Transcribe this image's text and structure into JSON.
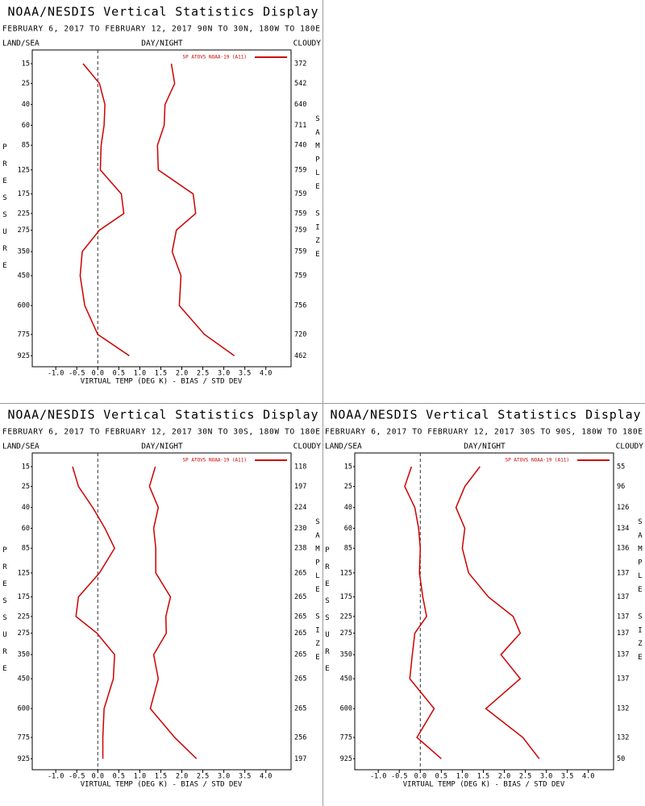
{
  "chart_data": [
    {
      "type": "line",
      "title": "NOAA/NESDIS Vertical Statistics Display",
      "subtitle": "FEBRUARY 6, 2017 TO FEBRUARY 12, 2017 90N TO 30N, 180W TO 180E",
      "left_header": "LAND/SEA",
      "center_header": "DAY/NIGHT",
      "right_header": "CLOUDY",
      "ylabel": "PRESSURE",
      "y2label": "SAMPLE SIZE",
      "xlabel": "VIRTUAL TEMP (DEG K) - BIAS / STD DEV",
      "legend": "SP ATOVS NOAA-19 (A11)",
      "legend_color": "#cc0000",
      "y": [
        15,
        25,
        40,
        60,
        85,
        125,
        175,
        225,
        275,
        350,
        450,
        600,
        775,
        925
      ],
      "yticks": [
        15,
        25,
        40,
        60,
        85,
        125,
        175,
        225,
        275,
        350,
        450,
        600,
        775,
        925
      ],
      "ylim": [
        10,
        1010
      ],
      "y_scale": "power",
      "y_exponent": 0.3,
      "y_inverted": true,
      "sample_size": [
        372,
        542,
        640,
        711,
        740,
        759,
        759,
        759,
        759,
        759,
        759,
        756,
        720,
        462
      ],
      "xlim": [
        -1.56,
        4.6
      ],
      "xticks": [
        {
          "value": -1,
          "label": "-1.0"
        },
        -0.5,
        {
          "value": 0,
          "label": "0.0"
        },
        0.5,
        {
          "value": 1,
          "label": "1.0"
        },
        1.5,
        {
          "value": 2,
          "label": "2.0"
        },
        2.5,
        {
          "value": 3,
          "label": "3.0"
        },
        3.5,
        {
          "value": 4,
          "label": "4.0"
        }
      ],
      "zero_line": true,
      "series": [
        {
          "color": "#cc0000",
          "values": [
            -0.35,
            0.04,
            0.17,
            0.15,
            0.08,
            0.06,
            0.56,
            0.62,
            0.04,
            -0.37,
            -0.42,
            -0.31,
            0.0,
            0.75
          ]
        },
        {
          "color": "#cc0000",
          "values": [
            1.75,
            1.83,
            1.6,
            1.58,
            1.42,
            1.44,
            2.27,
            2.33,
            1.87,
            1.77,
            1.98,
            1.94,
            2.54,
            3.25
          ]
        }
      ]
    },
    {
      "type": "line",
      "title": "NOAA/NESDIS Vertical Statistics Display",
      "subtitle": "FEBRUARY 6, 2017 TO FEBRUARY 12, 2017 30N TO 30S, 180W TO 180E",
      "left_header": "LAND/SEA",
      "center_header": "DAY/NIGHT",
      "right_header": "CLOUDY",
      "ylabel": "PRESSURE",
      "y2label": "SAMPLE SIZE",
      "xlabel": "VIRTUAL TEMP (DEG K) - BIAS / STD DEV",
      "legend": "SP ATOVS NOAA-19 (A11)",
      "legend_color": "#cc0000",
      "y": [
        15,
        25,
        40,
        60,
        85,
        125,
        175,
        225,
        275,
        350,
        450,
        600,
        775,
        925
      ],
      "yticks": [
        15,
        25,
        40,
        60,
        85,
        125,
        175,
        225,
        275,
        350,
        450,
        600,
        775,
        925
      ],
      "ylim": [
        10,
        1010
      ],
      "y_scale": "power",
      "y_exponent": 0.3,
      "y_inverted": true,
      "sample_size": [
        118,
        197,
        224,
        230,
        238,
        265,
        265,
        265,
        265,
        265,
        265,
        265,
        256,
        197
      ],
      "xlim": [
        -1.56,
        4.6
      ],
      "xticks": [
        {
          "value": -1,
          "label": "-1.0"
        },
        -0.5,
        {
          "value": 0,
          "label": "0.0"
        },
        0.5,
        {
          "value": 1,
          "label": "1.0"
        },
        1.5,
        {
          "value": 2,
          "label": "2.0"
        },
        2.5,
        {
          "value": 3,
          "label": "3.0"
        },
        3.5,
        {
          "value": 4,
          "label": "4.0"
        }
      ],
      "zero_line": true,
      "series": [
        {
          "color": "#cc0000",
          "values": [
            -0.6,
            -0.46,
            -0.12,
            0.17,
            0.4,
            0.04,
            -0.46,
            -0.52,
            -0.02,
            0.4,
            0.37,
            0.15,
            0.12,
            0.12
          ]
        },
        {
          "color": "#cc0000",
          "values": [
            1.37,
            1.23,
            1.44,
            1.33,
            1.38,
            1.38,
            1.73,
            1.62,
            1.63,
            1.33,
            1.44,
            1.25,
            1.83,
            2.35
          ]
        }
      ]
    },
    {
      "type": "line",
      "title": "NOAA/NESDIS Vertical Statistics Display",
      "subtitle": "FEBRUARY 6, 2017 TO FEBRUARY 12, 2017 30S TO 90S, 180W TO 180E",
      "left_header": "LAND/SEA",
      "center_header": "DAY/NIGHT",
      "right_header": "CLOUDY",
      "ylabel": "PRESSURE",
      "y2label": "SAMPLE SIZE",
      "xlabel": "VIRTUAL TEMP (DEG K) - BIAS / STD DEV",
      "legend": "SP ATOVS NOAA-19 (A11)",
      "legend_color": "#cc0000",
      "y": [
        15,
        25,
        40,
        60,
        85,
        125,
        175,
        225,
        275,
        350,
        450,
        600,
        775,
        925
      ],
      "yticks": [
        15,
        25,
        40,
        60,
        85,
        125,
        175,
        225,
        275,
        350,
        450,
        600,
        775,
        925
      ],
      "ylim": [
        10,
        1010
      ],
      "y_scale": "power",
      "y_exponent": 0.3,
      "y_inverted": true,
      "sample_size": [
        55,
        96,
        126,
        134,
        136,
        137,
        137,
        137,
        137,
        137,
        137,
        132,
        132,
        50
      ],
      "xlim": [
        -1.56,
        4.6
      ],
      "xticks": [
        {
          "value": -1,
          "label": "-1.0"
        },
        -0.5,
        {
          "value": 0,
          "label": "0.0"
        },
        0.5,
        {
          "value": 1,
          "label": "1.0"
        },
        1.5,
        {
          "value": 2,
          "label": "2.0"
        },
        2.5,
        {
          "value": 3,
          "label": "3.0"
        },
        3.5,
        {
          "value": 4,
          "label": "4.0"
        }
      ],
      "zero_line": true,
      "series": [
        {
          "color": "#cc0000",
          "values": [
            -0.21,
            -0.37,
            -0.13,
            -0.04,
            0.0,
            -0.02,
            0.06,
            0.15,
            -0.13,
            -0.19,
            -0.25,
            0.33,
            -0.08,
            0.5
          ]
        },
        {
          "color": "#cc0000",
          "values": [
            1.42,
            1.06,
            0.85,
            1.06,
            1.0,
            1.15,
            1.62,
            2.21,
            2.38,
            1.92,
            2.38,
            1.56,
            2.44,
            2.83
          ]
        }
      ]
    }
  ]
}
